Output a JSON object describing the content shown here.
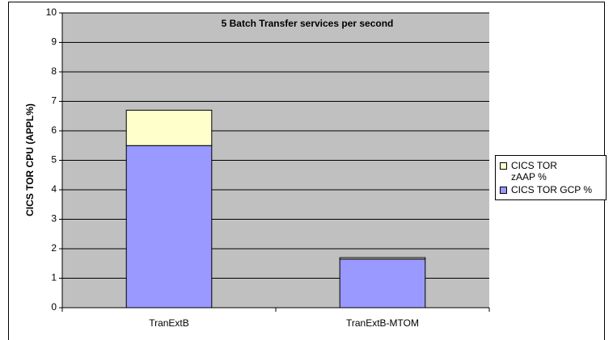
{
  "chart_data": {
    "type": "stacked_bar",
    "title": "5 Batch Transfer services per second",
    "y_label": "CICS TOR CPU (APPL%)",
    "categories": [
      "TranExtB",
      "TranExtB-MTOM"
    ],
    "series": [
      {
        "name": "CICS TOR GCP %",
        "color": "#9999ff",
        "values": [
          5.5,
          1.65
        ]
      },
      {
        "name": "CICS TOR zAAP %",
        "color": "#ffffcc",
        "values": [
          1.2,
          0.05
        ]
      }
    ],
    "ylim": [
      0,
      10
    ],
    "yticks": [
      0,
      1,
      2,
      3,
      4,
      5,
      6,
      7,
      8,
      9,
      10
    ],
    "grid": true,
    "legend": "right"
  }
}
